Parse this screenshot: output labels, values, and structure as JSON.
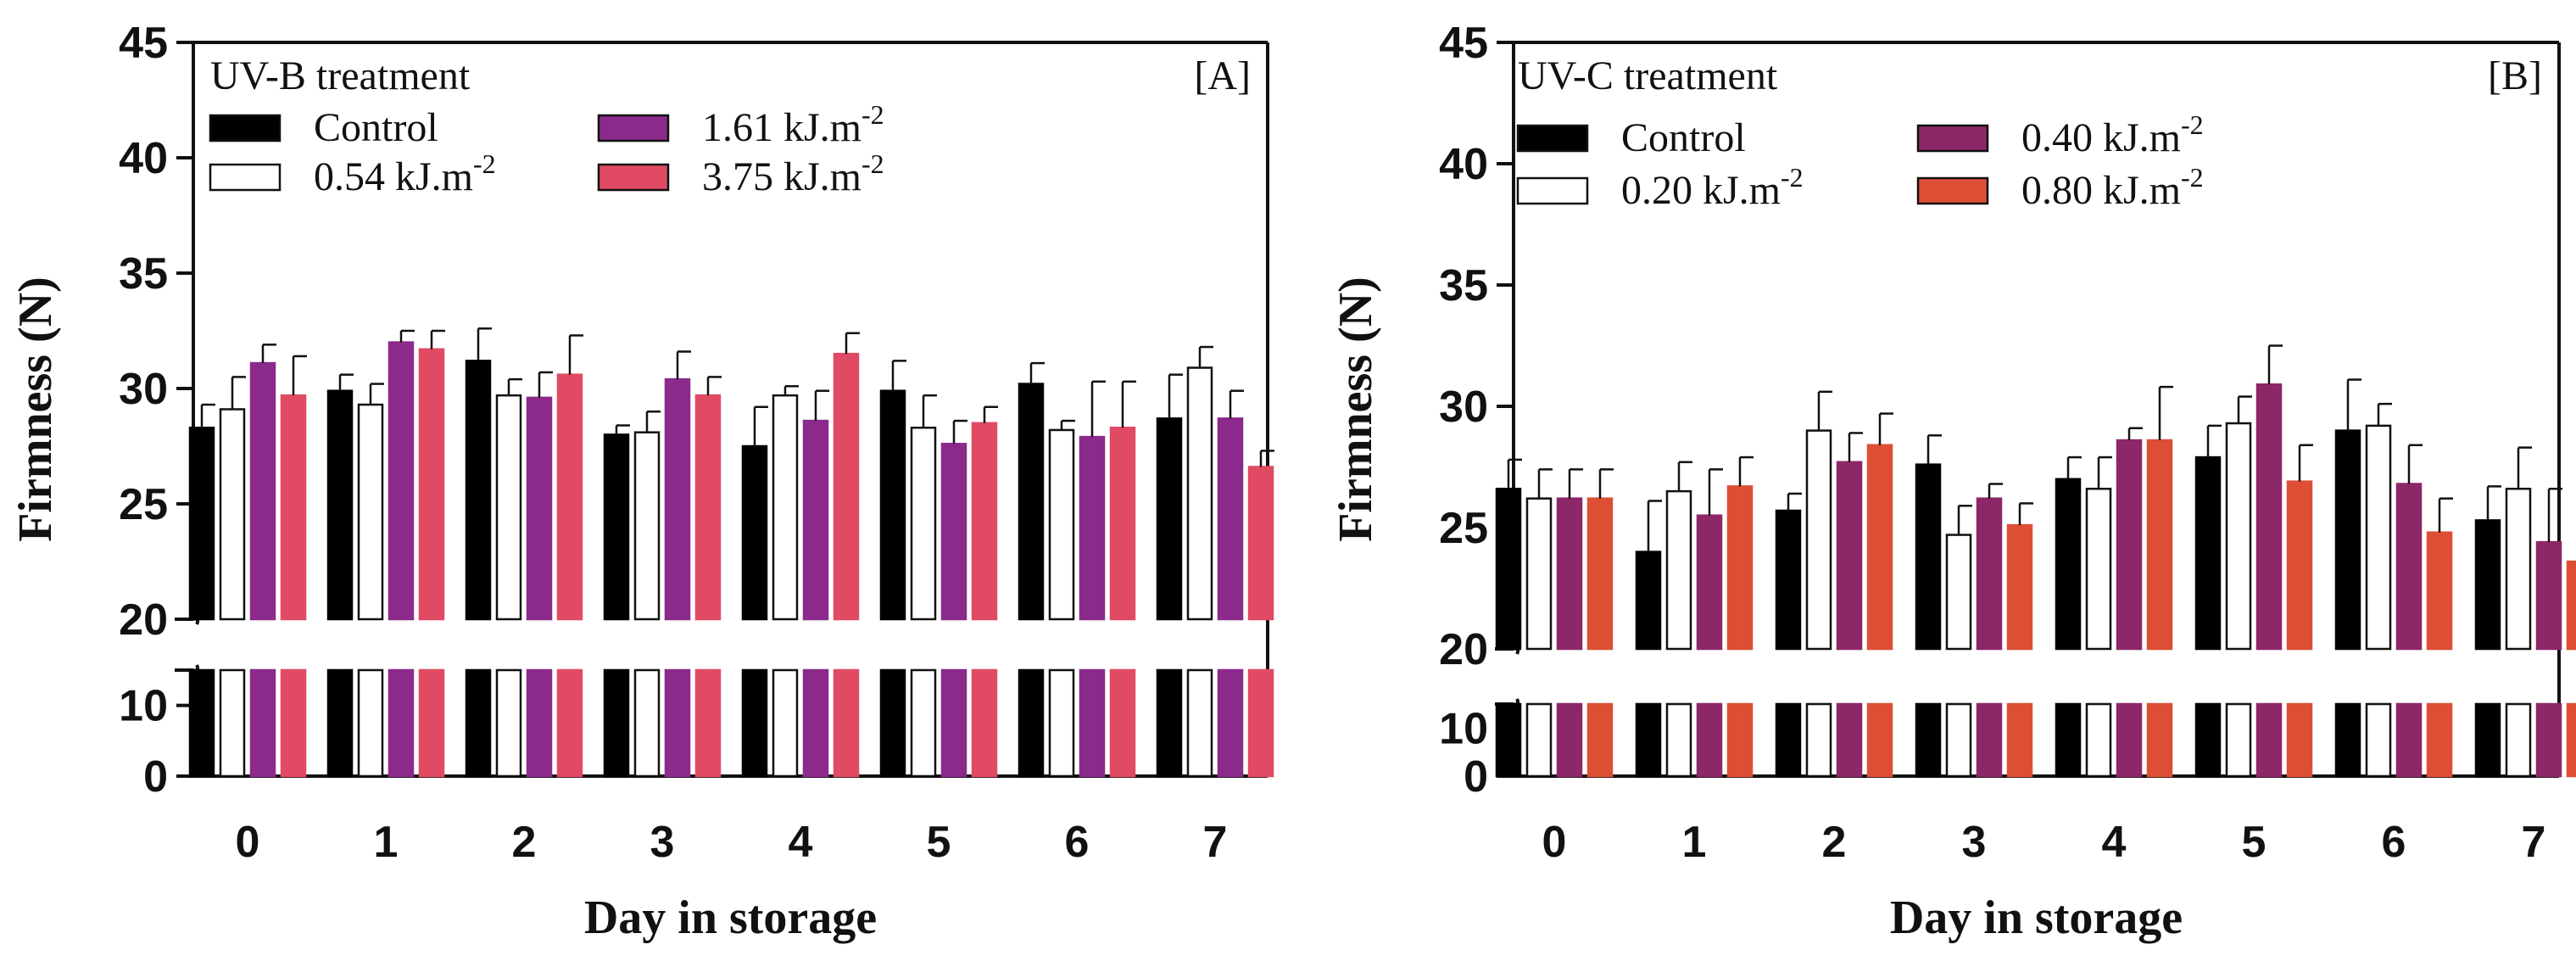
{
  "colors": {
    "control": "#000000",
    "white": "#ffffff",
    "purple_b": "#8b2a8b",
    "red_b": "#e04a63",
    "purple_c": "#8c2768",
    "orange_c": "#dd4f35"
  },
  "chart_data": [
    {
      "type": "bar",
      "panel_label": "[A]",
      "treatment": "UV-B treatment",
      "xlabel": "Day in storage",
      "ylabel": "Firmness (N)",
      "categories": [
        "0",
        "1",
        "2",
        "3",
        "4",
        "5",
        "6",
        "7"
      ],
      "y_ticks_upper": [
        "20",
        "25",
        "30",
        "35",
        "40",
        "45"
      ],
      "y_ticks_lower": [
        "0",
        "10"
      ],
      "ylim_upper": [
        20,
        45
      ],
      "ylim_lower": [
        0,
        15
      ],
      "axis_break": "between 15 and 20",
      "legend": [
        {
          "label": "Control",
          "sup": "",
          "color_key": "control"
        },
        {
          "label": "0.54 kJ.m",
          "sup": "-2",
          "color_key": "white"
        },
        {
          "label": "1.61 kJ.m",
          "sup": "-2",
          "color_key": "purple_b"
        },
        {
          "label": "3.75 kJ.m",
          "sup": "-2",
          "color_key": "red_b"
        }
      ],
      "series": [
        {
          "name": "Control",
          "color_key": "control",
          "values": [
            28.3,
            29.9,
            31.2,
            28.0,
            27.5,
            29.9,
            30.2,
            28.7
          ],
          "errors": [
            1.0,
            0.7,
            1.4,
            0.4,
            1.7,
            1.3,
            0.9,
            1.9
          ]
        },
        {
          "name": "0.54 kJ.m-2",
          "color_key": "white",
          "values": [
            29.1,
            29.3,
            29.7,
            28.1,
            29.7,
            28.3,
            28.2,
            30.9
          ],
          "errors": [
            1.4,
            0.9,
            0.7,
            0.9,
            0.4,
            1.4,
            0.4,
            0.9
          ]
        },
        {
          "name": "1.61 kJ.m-2",
          "color_key": "purple_b",
          "values": [
            31.1,
            32.0,
            29.6,
            30.4,
            28.6,
            27.6,
            27.9,
            28.7
          ],
          "errors": [
            0.8,
            0.5,
            1.1,
            1.2,
            1.3,
            1.0,
            2.4,
            1.2
          ]
        },
        {
          "name": "3.75 kJ.m-2",
          "color_key": "red_b",
          "values": [
            29.7,
            31.7,
            30.6,
            29.7,
            31.5,
            28.5,
            28.3,
            26.6
          ],
          "errors": [
            1.7,
            0.8,
            1.7,
            0.8,
            0.9,
            0.7,
            2.0,
            0.7
          ]
        }
      ]
    },
    {
      "type": "bar",
      "panel_label": "[B]",
      "treatment": "UV-C treatment",
      "xlabel": "Day in storage",
      "ylabel": "Firmness (N)",
      "categories": [
        "0",
        "1",
        "2",
        "3",
        "4",
        "5",
        "6",
        "7"
      ],
      "y_ticks_upper": [
        "20",
        "25",
        "30",
        "35",
        "40",
        "45"
      ],
      "y_ticks_lower": [
        "0",
        "10"
      ],
      "ylim_upper": [
        20,
        45
      ],
      "ylim_lower": [
        0,
        15
      ],
      "axis_break": "between 15 and 20",
      "legend": [
        {
          "label": "Control",
          "sup": "",
          "color_key": "control"
        },
        {
          "label": "0.20 kJ.m",
          "sup": "-2",
          "color_key": "white"
        },
        {
          "label": "0.40 kJ.m",
          "sup": "-2",
          "color_key": "purple_c"
        },
        {
          "label": "0.80 kJ.m",
          "sup": "-2",
          "color_key": "orange_c"
        }
      ],
      "series": [
        {
          "name": "Control",
          "color_key": "control",
          "values": [
            26.6,
            24.0,
            25.7,
            27.6,
            27.0,
            27.9,
            29.0,
            25.3
          ],
          "errors": [
            1.2,
            2.1,
            0.7,
            1.2,
            0.9,
            1.3,
            2.1,
            1.4
          ]
        },
        {
          "name": "0.20 kJ.m-2",
          "color_key": "white",
          "values": [
            26.2,
            26.5,
            29.0,
            24.7,
            26.6,
            29.3,
            29.2,
            26.6
          ],
          "errors": [
            1.2,
            1.2,
            1.6,
            1.2,
            1.3,
            1.1,
            0.9,
            1.7
          ]
        },
        {
          "name": "0.40 kJ.m-2",
          "color_key": "purple_c",
          "values": [
            26.2,
            25.5,
            27.7,
            26.2,
            28.6,
            30.9,
            26.8,
            24.4
          ],
          "errors": [
            1.2,
            1.9,
            1.2,
            0.6,
            0.5,
            1.6,
            1.6,
            2.2
          ]
        },
        {
          "name": "0.80 kJ.m-2",
          "color_key": "orange_c",
          "values": [
            26.2,
            26.7,
            28.4,
            25.1,
            28.6,
            26.9,
            24.8,
            23.6
          ],
          "errors": [
            1.2,
            1.2,
            1.3,
            0.9,
            2.2,
            1.5,
            1.4,
            2.1
          ]
        }
      ]
    }
  ]
}
